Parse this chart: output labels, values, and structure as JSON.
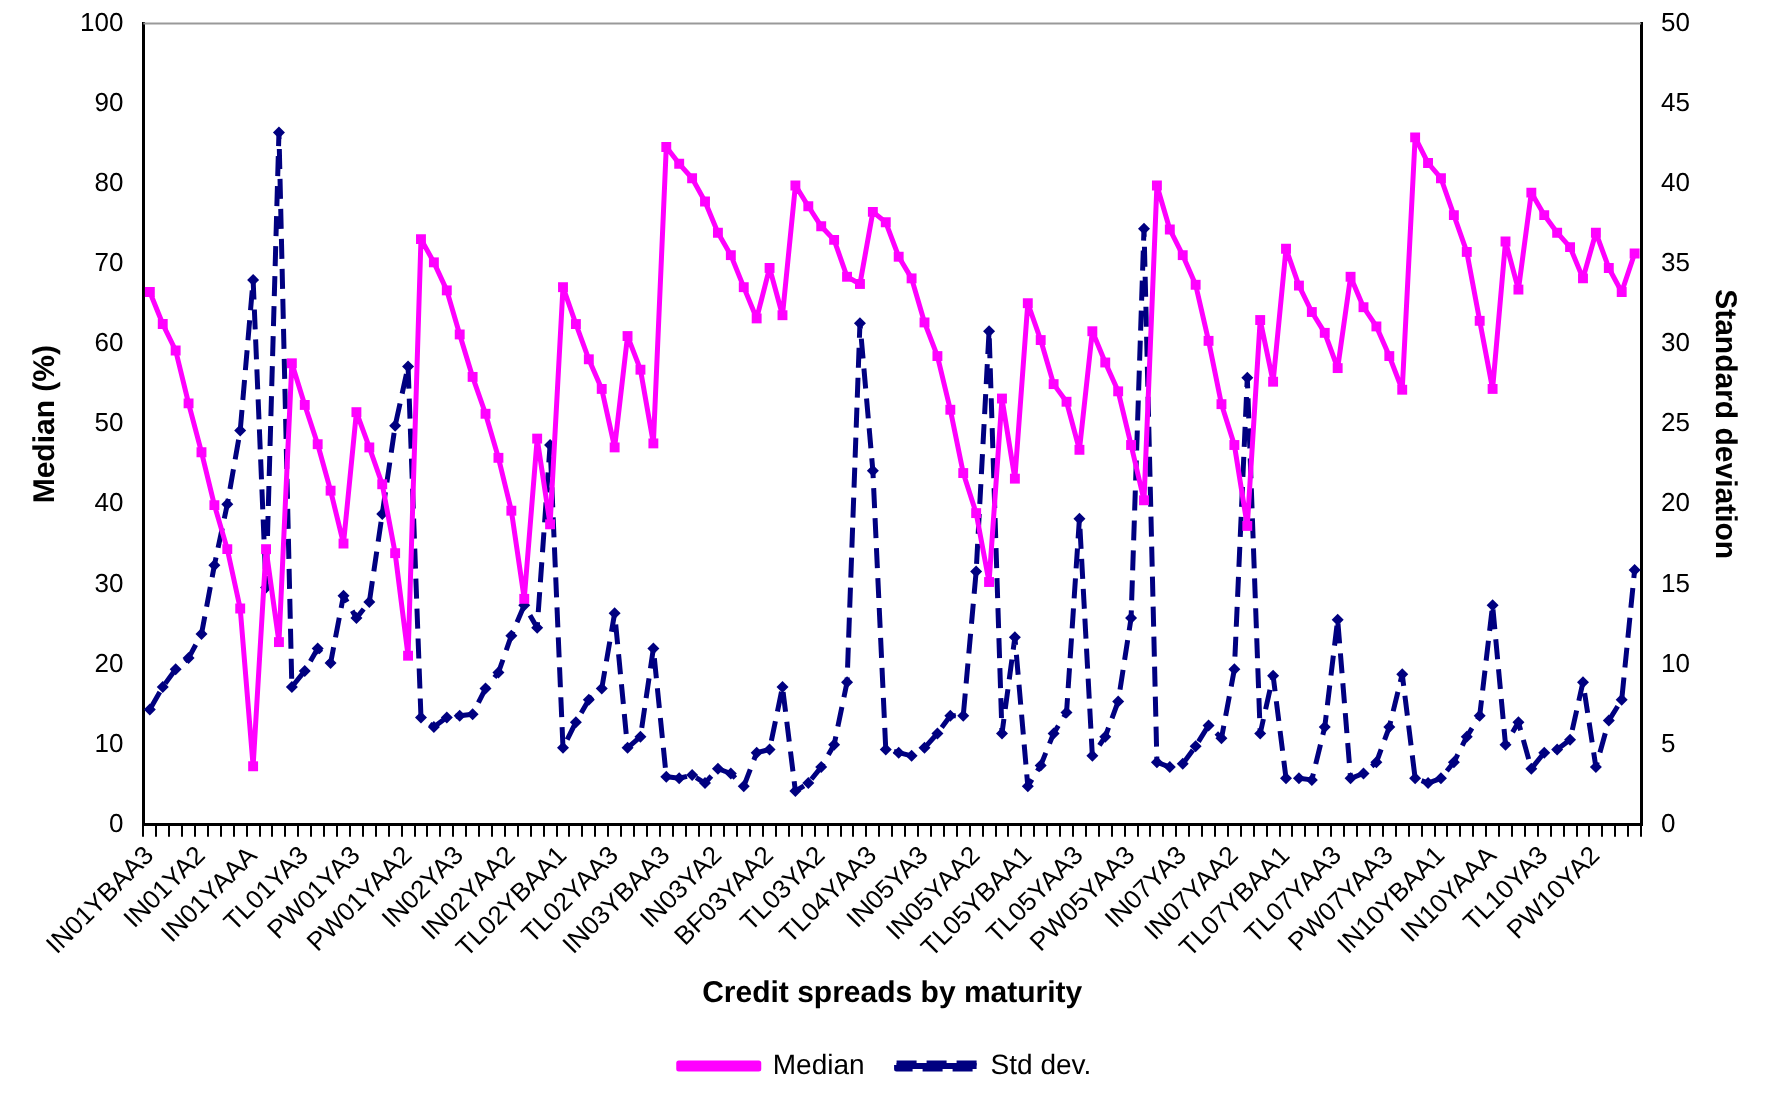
{
  "chart_data": {
    "type": "line",
    "xlabel": "Credit spreads by maturity",
    "ylabel": "Median (%)",
    "y2label": "Standard deviation",
    "categories": [
      "IN01YBAA3",
      null,
      null,
      null,
      "IN01YA2",
      null,
      null,
      null,
      "IN01YAAA",
      null,
      null,
      null,
      "TL01YA3",
      null,
      null,
      null,
      "PW01YA3",
      null,
      null,
      null,
      "PW01YAA2",
      null,
      null,
      null,
      "IN02YA3",
      null,
      null,
      null,
      "IN02YAA2",
      null,
      null,
      null,
      "TL02YBAA1",
      null,
      null,
      null,
      "TL02YAA3",
      null,
      null,
      null,
      "IN03YBAA3",
      null,
      null,
      null,
      "IN03YA2",
      null,
      null,
      null,
      "BF03YAA2",
      null,
      null,
      null,
      "TL03YA2",
      null,
      null,
      null,
      "TL04YAA3",
      null,
      null,
      null,
      "IN05YA3",
      null,
      null,
      null,
      "IN05YAA2",
      null,
      null,
      null,
      "TL05YBAA1",
      null,
      null,
      null,
      "TL05YAA3",
      null,
      null,
      null,
      "PW05YAA3",
      null,
      null,
      null,
      "IN07YA3",
      null,
      null,
      null,
      "IN07YAA2",
      null,
      null,
      null,
      "TL07YBAA1",
      null,
      null,
      null,
      "TL07YAA3",
      null,
      null,
      null,
      "PW07YAA3",
      null,
      null,
      null,
      "IN10YBAA1",
      null,
      null,
      null,
      "IN10YAAA",
      null,
      null,
      null,
      "TL10YA3",
      null,
      null,
      null,
      "PW10YA2",
      null,
      null,
      null
    ],
    "series": [
      {
        "name": "Median",
        "color": "#ff00ff",
        "marker": "square",
        "line_style": "solid",
        "values": [
          66.5,
          62.5,
          59.2,
          52.6,
          46.5,
          39.9,
          34.4,
          27.0,
          7.3,
          34.4,
          22.8,
          57.6,
          52.4,
          47.5,
          41.7,
          35.1,
          51.5,
          47.1,
          42.5,
          33.9,
          21.1,
          73.1,
          70.2,
          66.7,
          61.2,
          55.9,
          51.3,
          45.8,
          39.2,
          28.2,
          48.2,
          37.5,
          67.1,
          62.5,
          58.1,
          54.4,
          47.1,
          61.0,
          56.8,
          47.6,
          84.6,
          82.5,
          80.7,
          77.8,
          73.9,
          71.1,
          67.1,
          63.2,
          69.5,
          63.6,
          79.8,
          77.2,
          74.7,
          73.0,
          68.4,
          67.5,
          76.5,
          75.2,
          70.9,
          68.2,
          62.7,
          58.5,
          51.8,
          43.9,
          38.9,
          30.3,
          53.2,
          43.2,
          65.1,
          60.5,
          55.0,
          52.8,
          46.8,
          61.6,
          57.7,
          54.1,
          47.4,
          40.5,
          79.8,
          74.3,
          71.1,
          67.4,
          60.4,
          52.5,
          47.4,
          37.3,
          63.0,
          55.3,
          71.9,
          67.3,
          64.0,
          61.4,
          57.0,
          68.4,
          64.6,
          62.2,
          58.5,
          54.3,
          85.8,
          82.6,
          80.7,
          76.1,
          71.5,
          62.9,
          54.4,
          72.8,
          66.8,
          78.9,
          76.1,
          73.9,
          72.1,
          68.2,
          73.9,
          69.5,
          66.5,
          71.3
        ]
      },
      {
        "name": "Std dev.",
        "color": "#000080",
        "marker": "diamond",
        "line_style": "dashed",
        "axis": "y2",
        "values": [
          7.2,
          8.6,
          9.7,
          10.4,
          11.9,
          16.2,
          20.0,
          24.6,
          34.0,
          14.8,
          43.2,
          8.6,
          9.6,
          11.0,
          10.1,
          14.3,
          12.9,
          13.9,
          19.4,
          24.9,
          28.6,
          6.7,
          6.1,
          6.7,
          6.8,
          6.9,
          8.5,
          9.5,
          11.8,
          13.7,
          12.3,
          23.7,
          4.8,
          6.4,
          7.8,
          8.5,
          13.2,
          4.8,
          5.5,
          11.0,
          3.0,
          2.9,
          3.1,
          2.6,
          3.5,
          3.2,
          2.4,
          4.5,
          4.7,
          8.6,
          2.1,
          2.6,
          3.6,
          5.0,
          8.9,
          31.3,
          22.1,
          4.7,
          4.5,
          4.3,
          4.8,
          5.7,
          6.8,
          6.8,
          15.8,
          30.8,
          5.7,
          11.7,
          2.4,
          3.7,
          5.7,
          7.0,
          19.1,
          4.3,
          5.5,
          7.7,
          12.9,
          37.2,
          3.9,
          3.6,
          3.8,
          4.9,
          6.2,
          5.4,
          9.7,
          27.9,
          5.7,
          9.3,
          2.9,
          2.9,
          2.8,
          6.1,
          12.8,
          2.9,
          3.2,
          3.9,
          6.1,
          9.4,
          2.9,
          2.6,
          2.9,
          3.9,
          5.5,
          6.8,
          13.7,
          5.0,
          6.4,
          3.5,
          4.5,
          4.7,
          5.3,
          8.9,
          3.6,
          6.5,
          7.8,
          15.9
        ]
      }
    ],
    "ylim": [
      0,
      100
    ],
    "yticks": [
      0,
      10,
      20,
      30,
      40,
      50,
      60,
      70,
      80,
      90,
      100
    ],
    "y2lim": [
      0,
      50
    ],
    "y2ticks": [
      0,
      5,
      10,
      15,
      20,
      25,
      30,
      35,
      40,
      45,
      50
    ],
    "grid": false,
    "legend": "bottom"
  }
}
